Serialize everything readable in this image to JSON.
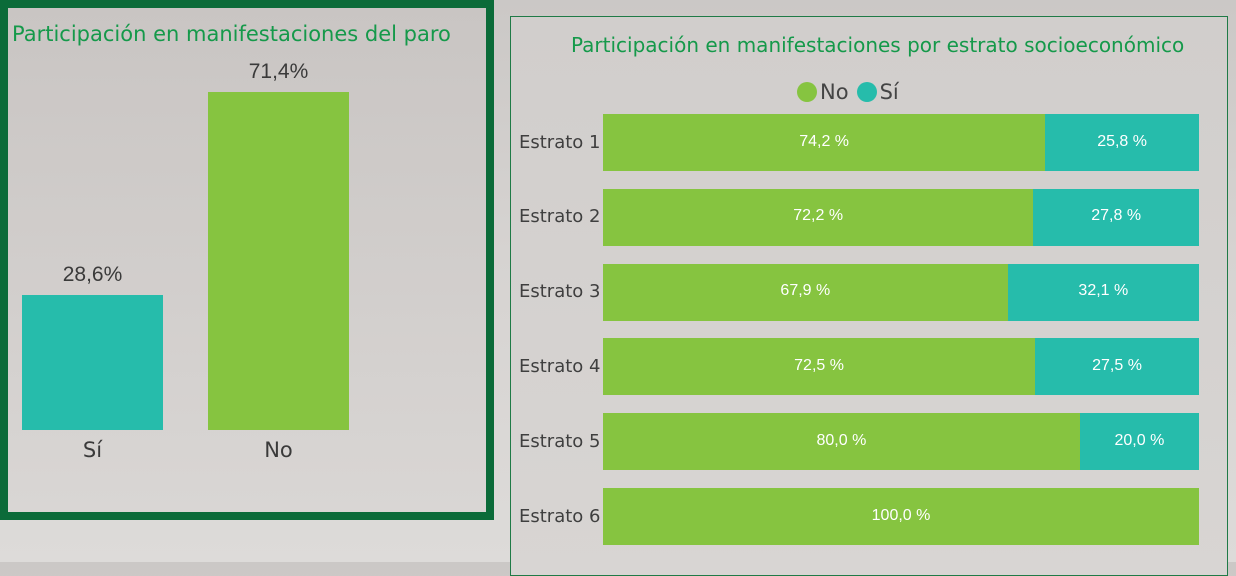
{
  "colors": {
    "no": "#86c440",
    "si": "#26bcab",
    "title": "#15994a",
    "frame": "#0b6b39"
  },
  "chart_data": [
    {
      "type": "bar",
      "title": "Participación en manifestaciones del paro",
      "categories": [
        "Sí",
        "No"
      ],
      "values": [
        28.6,
        71.4
      ],
      "value_labels": [
        "28,6%",
        "71,4%"
      ],
      "colors": [
        "#26bcab",
        "#86c440"
      ],
      "ylim": [
        0,
        71.4
      ]
    },
    {
      "type": "bar",
      "orientation": "horizontal",
      "stacked": "100%",
      "title": "Participación en manifestaciones por estrato socioeconómico",
      "legend": {
        "position": "top",
        "entries": [
          "No",
          "Sí"
        ]
      },
      "categories": [
        "Estrato 1",
        "Estrato 2",
        "Estrato 3",
        "Estrato 4",
        "Estrato 5",
        "Estrato 6"
      ],
      "series": [
        {
          "name": "No",
          "values": [
            74.2,
            72.2,
            67.9,
            72.5,
            80.0,
            100.0
          ],
          "labels": [
            "74,2 %",
            "72,2 %",
            "67,9 %",
            "72,5 %",
            "80,0 %",
            "100,0 %"
          ]
        },
        {
          "name": "Sí",
          "values": [
            25.8,
            27.8,
            32.1,
            27.5,
            20.0,
            0
          ],
          "labels": [
            "25,8 %",
            "27,8 %",
            "32,1 %",
            "27,5 %",
            "20,0 %",
            ""
          ]
        }
      ]
    }
  ]
}
